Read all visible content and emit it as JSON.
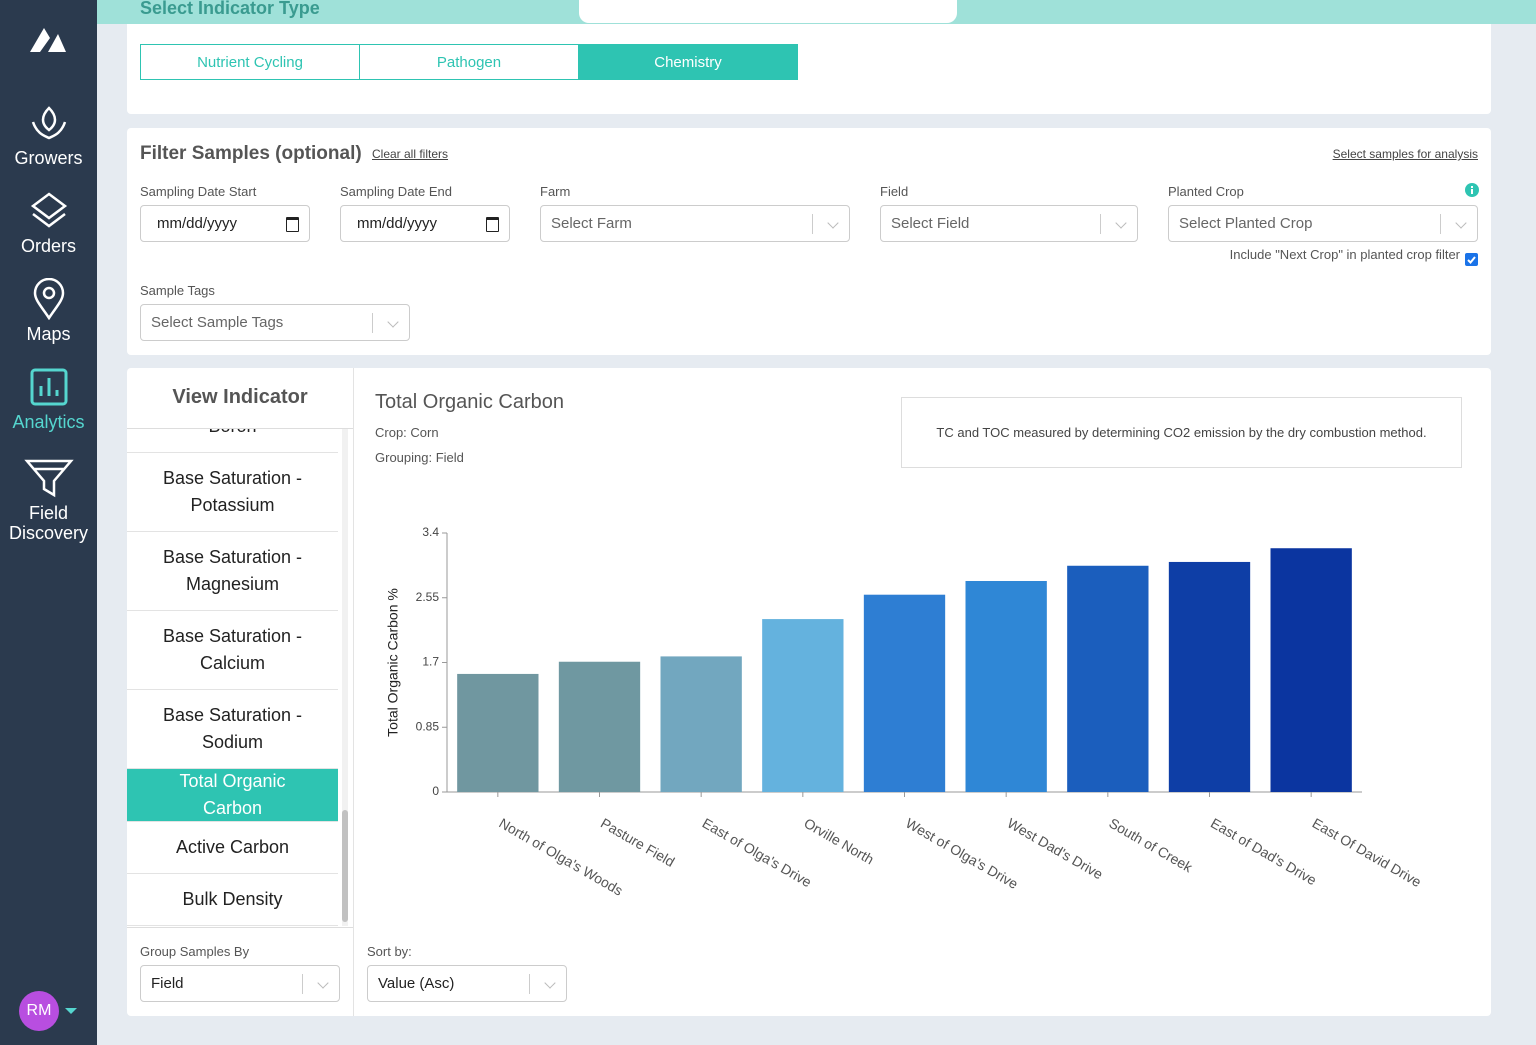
{
  "sidebar": {
    "nav": [
      "Growers",
      "Orders",
      "Maps",
      "Analytics",
      "Field Discovery"
    ],
    "avatar": "RM"
  },
  "indicator_type": {
    "heading": "Select Indicator Type",
    "tabs": [
      "Nutrient Cycling",
      "Pathogen",
      "Chemistry"
    ]
  },
  "filters": {
    "title": "Filter Samples (optional)",
    "clear": "Clear all filters",
    "select_samples": "Select samples for analysis",
    "fields": [
      {
        "label": "Sampling Date Start",
        "placeholder": "mm/dd/yyyy"
      },
      {
        "label": "Sampling Date End",
        "placeholder": "mm/dd/yyyy"
      },
      {
        "label": "Farm",
        "placeholder": "Select Farm"
      },
      {
        "label": "Field",
        "placeholder": "Select Field"
      },
      {
        "label": "Planted Crop",
        "placeholder": "Select Planted Crop"
      },
      {
        "label": "Sample Tags",
        "placeholder": "Select Sample Tags"
      }
    ],
    "next_crop": "Include \"Next Crop\" in planted crop filter"
  },
  "indicators": {
    "heading": "View Indicator",
    "items": [
      "Boron",
      "Base Saturation - Potassium",
      "Base Saturation - Magnesium",
      "Base Saturation - Calcium",
      "Base Saturation - Sodium",
      "Total Organic Carbon",
      "Active Carbon",
      "Bulk Density"
    ],
    "group_by": {
      "label": "Group Samples By",
      "value": "Field"
    },
    "sort_by": {
      "label": "Sort by:",
      "value": "Value (Asc)"
    }
  },
  "chart_header": {
    "crop": "Crop: Corn",
    "grouping": "Grouping: Field",
    "description": "TC and TOC measured by determining CO2 emission by the dry combustion method."
  },
  "chart_data": {
    "type": "bar",
    "title": "Total Organic Carbon",
    "y_label": "Total Organic Carbon %",
    "categories": [
      "North of Olga's Woods",
      "Pasture Field",
      "East of Olga's Drive",
      "Orville North",
      "West of Olga's Drive",
      "West Dad's Drive",
      "South of Creek",
      "East of Dad's Drive",
      "East Of David Drive"
    ],
    "values": [
      1.55,
      1.71,
      1.78,
      2.27,
      2.59,
      2.77,
      2.97,
      3.02,
      3.2
    ],
    "colors": [
      "#7097a0",
      "#6f98a1",
      "#72a7bf",
      "#64b2de",
      "#2e7ed3",
      "#2f87d6",
      "#1b5ebd",
      "#0e3ea6",
      "#0b35a0"
    ],
    "ylim": [
      0,
      3.4
    ],
    "yticks": [
      0,
      0.85,
      1.7,
      2.55,
      3.4
    ],
    "grid": false
  }
}
